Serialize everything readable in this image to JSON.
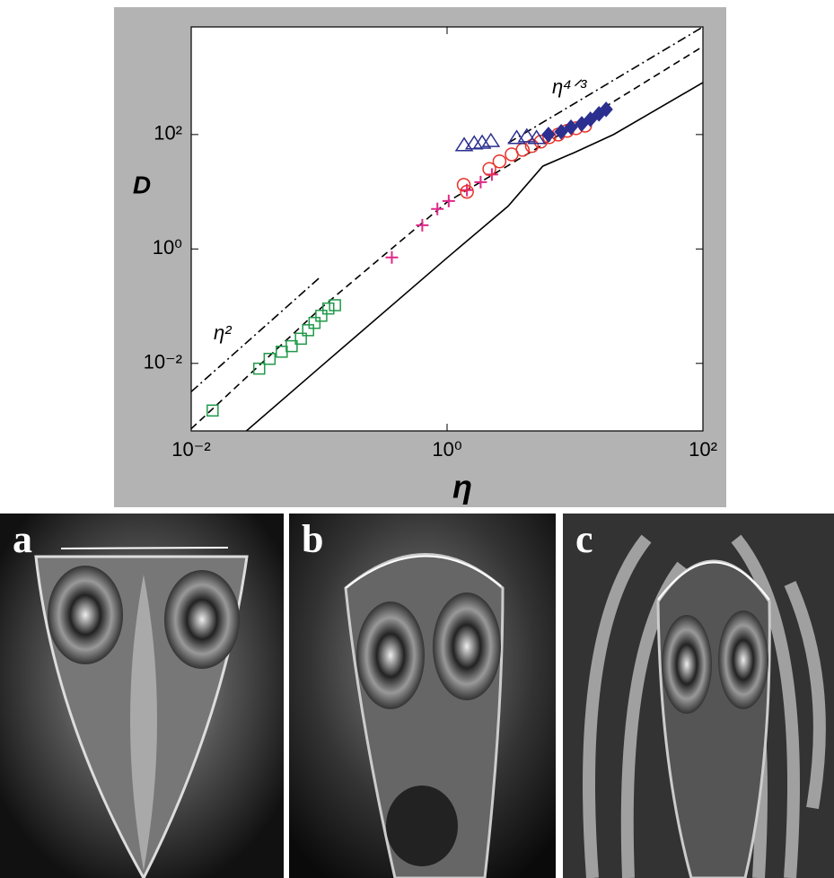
{
  "chart_data": {
    "type": "scatter",
    "x_label": "η",
    "y_label": "D",
    "xscale": "log",
    "yscale": "log",
    "xlim": [
      0.01,
      100
    ],
    "ylim": [
      0.00066,
      7600
    ],
    "xticks": [
      {
        "value": 0.01,
        "label": "10⁻²"
      },
      {
        "value": 1,
        "label": "10⁰"
      },
      {
        "value": 100,
        "label": "10²"
      }
    ],
    "yticks": [
      {
        "value": 0.01,
        "label": "10⁻²"
      },
      {
        "value": 1,
        "label": "10⁰"
      },
      {
        "value": 100,
        "label": "10²"
      }
    ],
    "annotations": [
      "η²",
      "η⁴ᐟ³"
    ],
    "series": [
      {
        "marker": "square",
        "color": "#1f9a4a",
        "x": [
          0.0147,
          0.034,
          0.041,
          0.051,
          0.061,
          0.072,
          0.082,
          0.092,
          0.104,
          0.118,
          0.133
        ],
        "values": [
          0.0015,
          0.0081,
          0.012,
          0.016,
          0.02,
          0.027,
          0.038,
          0.051,
          0.068,
          0.091,
          0.104
        ]
      },
      {
        "marker": "plus",
        "color": "#e0288a",
        "x": [
          0.37,
          0.64,
          0.84,
          1.03,
          1.43,
          1.83,
          2.24
        ],
        "values": [
          0.71,
          2.6,
          5.0,
          6.9,
          10.7,
          14.7,
          20
        ]
      },
      {
        "marker": "circle",
        "color": "#e8322a",
        "x": [
          1.35,
          1.43,
          2.14,
          2.57,
          3.2,
          3.9,
          4.6,
          5.4,
          6.3,
          7.4,
          8.7,
          10.2,
          12
        ],
        "values": [
          13.2,
          10,
          25,
          34,
          45,
          54,
          63,
          75,
          90,
          100,
          116,
          129,
          143
        ]
      },
      {
        "marker": "triangle",
        "color": "#2b2f8f",
        "x": [
          1.36,
          1.63,
          1.88,
          2.2,
          3.5,
          4.2,
          5.0
        ],
        "values": [
          65,
          70,
          72,
          77,
          87,
          93,
          87
        ]
      },
      {
        "marker": "diamond",
        "color": "#2b2f8f",
        "x": [
          6.2,
          7.8,
          9.3,
          11.3,
          13.2,
          15.4,
          17.5
        ],
        "values": [
          100,
          112,
          134,
          154,
          185,
          230,
          275
        ]
      }
    ],
    "lines": [
      {
        "style": "dashdot",
        "x": [
          0.01,
          0.1
        ],
        "values": [
          0.0032,
          0.31
        ]
      },
      {
        "style": "dashdot",
        "x": [
          3,
          100
        ],
        "values": [
          71,
          7600
        ]
      },
      {
        "style": "dashed",
        "x": [
          0.01,
          0.1,
          1,
          10,
          100
        ],
        "values": [
          0.00072,
          0.087,
          6.6,
          144,
          3470
        ]
      },
      {
        "style": "solid",
        "x": [
          0.027,
          0.1,
          1,
          3,
          5.6,
          10,
          20,
          100
        ],
        "values": [
          0.00066,
          0.0083,
          0.7,
          5.6,
          28,
          49,
          100,
          810
        ]
      }
    ]
  },
  "panels": [
    {
      "label": "a"
    },
    {
      "label": "b"
    },
    {
      "label": "c"
    }
  ]
}
